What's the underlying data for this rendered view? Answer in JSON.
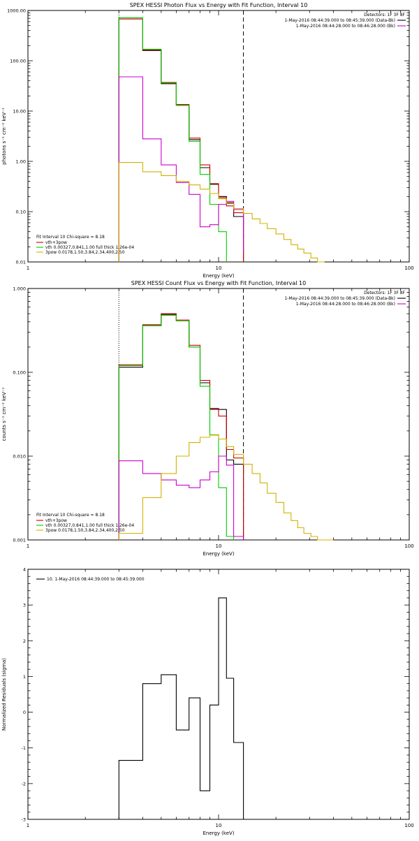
{
  "chart_data": [
    {
      "type": "line",
      "title": "SPEX HESSI Photon Flux vs Energy with Fit Function, Interval 10",
      "xlabel": "Energy (keV)",
      "ylabel": "photons s⁻¹ cm⁻² keV⁻¹",
      "xscale": "log",
      "yscale": "log",
      "xlim": [
        1,
        100
      ],
      "ylim": [
        0.01,
        1000
      ],
      "x_ticks": [
        "1",
        "10",
        "100"
      ],
      "y_ticks": [
        "0.01",
        "0.10",
        "1.00",
        "10.00",
        "100.00",
        "1000.00"
      ],
      "detectors_label": "Detectors: 1F 3F 8F",
      "legend_top": [
        {
          "label": "1-May-2016 08:44:39.000 to 08:45:39.000 (Data-Bk)",
          "color": "#000000"
        },
        {
          "label": "1-May-2016 08:44:28.000 to 08:46:28.000 (Bk)",
          "color": "#cc00cc"
        }
      ],
      "fit_label": "Fit Interval 10    Chi-square = 8.18",
      "legend_bottom": [
        {
          "label": "vth+3pow",
          "color": "#cc0000"
        },
        {
          "label": "vth 0.00327,0.841,1.00  full thick 1.26e-04",
          "color": "#00cc00"
        },
        {
          "label": "3pow 0.0178,1.50,3.84,2.34,400,2.50",
          "color": "#d4b000"
        }
      ],
      "vlines": [
        {
          "x": 3.0,
          "style": "dotted"
        },
        {
          "x": 13.5,
          "style": "dashed"
        }
      ],
      "series": [
        {
          "color": "#000000",
          "edges": [
            3.0,
            4.0,
            5.0,
            6.0,
            7.0,
            8.0,
            9.0,
            10.0,
            11.0,
            12.0,
            13.5
          ],
          "values": [
            680,
            160,
            35,
            13,
            2.7,
            0.75,
            0.35,
            0.2,
            0.15,
            0.08
          ]
        },
        {
          "color": "#cc0000",
          "edges": [
            3.0,
            4.0,
            5.0,
            6.0,
            7.0,
            8.0,
            9.0,
            10.0,
            11.0,
            12.0,
            13.5
          ],
          "values": [
            680,
            165,
            37,
            13.5,
            2.9,
            0.85,
            0.36,
            0.19,
            0.13,
            0.095
          ]
        },
        {
          "color": "#00cc00",
          "edges": [
            3.0,
            4.0,
            5.0,
            6.0,
            7.0,
            8.0,
            9.0,
            10.0,
            11.0
          ],
          "values": [
            720,
            170,
            36,
            13,
            2.5,
            0.55,
            0.14,
            0.04
          ]
        },
        {
          "color": "#cc00cc",
          "edges": [
            3.0,
            4.0,
            5.0,
            6.0,
            7.0,
            8.0,
            9.0,
            10.0,
            11.0,
            12.0,
            13.5
          ],
          "values": [
            48,
            2.8,
            0.85,
            0.38,
            0.22,
            0.05,
            0.055,
            0.14,
            0.16,
            0.11,
            0.016
          ]
        },
        {
          "color": "#d4b000",
          "edges": [
            3.0,
            4.0,
            5.0,
            6.0,
            7.0,
            8.0,
            9.0,
            10.0,
            11.0,
            12.0,
            13.5,
            15.0,
            16.5,
            18.0,
            20.0,
            22.0,
            24.0,
            26.0,
            28.0,
            30.5,
            33.0,
            36.0
          ],
          "values": [
            0.95,
            0.62,
            0.52,
            0.4,
            0.34,
            0.28,
            0.23,
            0.18,
            0.145,
            0.115,
            0.092,
            0.072,
            0.058,
            0.046,
            0.036,
            0.028,
            0.022,
            0.018,
            0.015,
            0.012,
            0.01
          ]
        }
      ]
    },
    {
      "type": "line",
      "title": "SPEX HESSI Count Flux vs Energy with Fit Function, Interval 10",
      "xlabel": "Energy (keV)",
      "ylabel": "counts s⁻¹ cm⁻² keV⁻¹",
      "xscale": "log",
      "yscale": "log",
      "xlim": [
        1,
        100
      ],
      "ylim": [
        0.001,
        1
      ],
      "x_ticks": [
        "1",
        "10",
        "100"
      ],
      "y_ticks": [
        "0.001",
        "0.010",
        "0.100",
        "1.000"
      ],
      "detectors_label": "Detectors: 1F 3F 8F",
      "legend_top": [
        {
          "label": "1-May-2016 08:44:39.000 to 08:45:39.000 (Data-Bk)",
          "color": "#000000"
        },
        {
          "label": "1-May-2016 08:44:28.000 to 08:46:28.000 (Bk)",
          "color": "#cc00cc"
        }
      ],
      "fit_label": "Fit Interval 10    Chi-square = 8.18",
      "legend_bottom": [
        {
          "label": "vth+3pow",
          "color": "#cc0000"
        },
        {
          "label": "vth 0.00327,0.841,1.00  full thick 1.26e-04",
          "color": "#00cc00"
        },
        {
          "label": "3pow 0.0178,1.50,3.84,2.34,400,2.50",
          "color": "#d4b000"
        }
      ],
      "vlines": [
        {
          "x": 3.0,
          "style": "dotted"
        },
        {
          "x": 13.5,
          "style": "dashed"
        }
      ],
      "series": [
        {
          "color": "#000000",
          "edges": [
            3.0,
            4.0,
            5.0,
            6.0,
            7.0,
            8.0,
            9.0,
            10.0,
            11.0,
            12.0,
            13.5
          ],
          "values": [
            0.115,
            0.36,
            0.49,
            0.41,
            0.2,
            0.075,
            0.037,
            0.036,
            0.009,
            0.008
          ]
        },
        {
          "color": "#cc0000",
          "edges": [
            3.0,
            4.0,
            5.0,
            6.0,
            7.0,
            8.0,
            9.0,
            10.0,
            11.0,
            12.0,
            13.5
          ],
          "values": [
            0.123,
            0.37,
            0.5,
            0.42,
            0.21,
            0.08,
            0.036,
            0.03,
            0.012,
            0.0095
          ]
        },
        {
          "color": "#00cc00",
          "edges": [
            3.0,
            4.0,
            5.0,
            6.0,
            7.0,
            8.0,
            9.0,
            10.0,
            11.0,
            12.0
          ],
          "values": [
            0.12,
            0.36,
            0.48,
            0.41,
            0.2,
            0.068,
            0.018,
            0.0042,
            0.0011
          ]
        },
        {
          "color": "#cc00cc",
          "edges": [
            3.0,
            4.0,
            5.0,
            6.0,
            7.0,
            8.0,
            9.0,
            10.0,
            11.0,
            12.0,
            13.5
          ],
          "values": [
            0.0088,
            0.0062,
            0.0052,
            0.0045,
            0.0042,
            0.0052,
            0.0065,
            0.01,
            0.0078,
            0.0011
          ]
        },
        {
          "color": "#d4b000",
          "edges": [
            3.0,
            4.0,
            5.0,
            6.0,
            7.0,
            8.0,
            9.0,
            10.0,
            11.0,
            12.0,
            13.5,
            15.0,
            16.5,
            18.0,
            20.0,
            22.0,
            24.0,
            26.0,
            28.0,
            30.5,
            33.0,
            36.0,
            40.0
          ],
          "values": [
            0.0012,
            0.0032,
            0.0062,
            0.01,
            0.0145,
            0.0168,
            0.0178,
            0.016,
            0.013,
            0.0105,
            0.008,
            0.0062,
            0.0048,
            0.0036,
            0.0028,
            0.0021,
            0.0017,
            0.0014,
            0.0012,
            0.0011,
            0.001,
            0.001
          ]
        }
      ]
    },
    {
      "type": "line",
      "xlabel": "Energy (keV)",
      "ylabel": "Normalized Residuals (sigma)",
      "xscale": "log",
      "yscale": "linear",
      "xlim": [
        1,
        100
      ],
      "ylim": [
        -3,
        4
      ],
      "x_ticks": [
        "1",
        "10",
        "100"
      ],
      "y_ticks": [
        "-3",
        "-2",
        "-1",
        "0",
        "1",
        "2",
        "3",
        "4"
      ],
      "legend": [
        {
          "label": "10.  1-May-2016 08:44:39.000 to 08:45:39.000",
          "color": "#000000"
        }
      ],
      "series": [
        {
          "color": "#000000",
          "edges": [
            3.0,
            4.0,
            5.0,
            6.0,
            7.0,
            8.0,
            9.0,
            10.0,
            11.0,
            12.0,
            13.5
          ],
          "values": [
            -1.35,
            0.8,
            1.05,
            -0.5,
            0.4,
            -2.2,
            0.2,
            3.2,
            0.95,
            -0.85
          ]
        }
      ]
    }
  ]
}
